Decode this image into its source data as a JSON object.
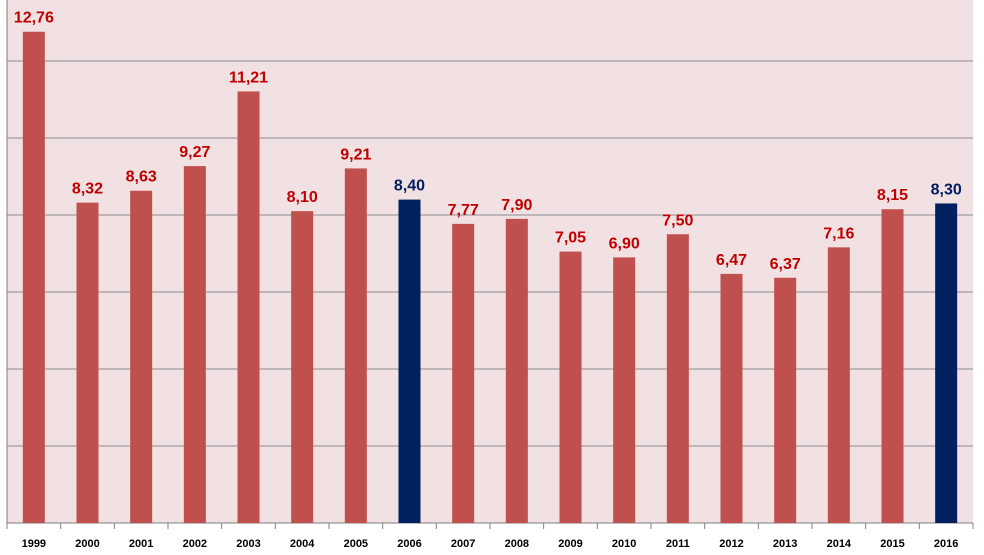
{
  "colors": {
    "plot_background": "#f2e1e2",
    "gridline": "#8c8c8c",
    "default_bar": "#c0504d",
    "highlight_bar": "#002060",
    "default_label": "#c00000",
    "highlight_label": "#002060"
  },
  "chart_data": {
    "type": "bar",
    "categories": [
      "1999",
      "2000",
      "2001",
      "2002",
      "2003",
      "2004",
      "2005",
      "2006",
      "2007",
      "2008",
      "2009",
      "2010",
      "2011",
      "2012",
      "2013",
      "2014",
      "2015",
      "2016"
    ],
    "values": [
      12.76,
      8.32,
      8.63,
      9.27,
      11.21,
      8.1,
      9.21,
      8.4,
      7.77,
      7.9,
      7.05,
      6.9,
      7.5,
      6.47,
      6.37,
      7.16,
      8.15,
      8.3
    ],
    "value_labels": [
      "12,76",
      "8,32",
      "8,63",
      "9,27",
      "11,21",
      "8,10",
      "9,21",
      "8,40",
      "7,77",
      "7,90",
      "7,05",
      "6,90",
      "7,50",
      "6,47",
      "6,37",
      "7,16",
      "8,15",
      "8,30"
    ],
    "highlighted": [
      "2006",
      "2016"
    ],
    "ylim": [
      0,
      14
    ],
    "gridline_step": 2,
    "grid": true,
    "legend": false
  }
}
